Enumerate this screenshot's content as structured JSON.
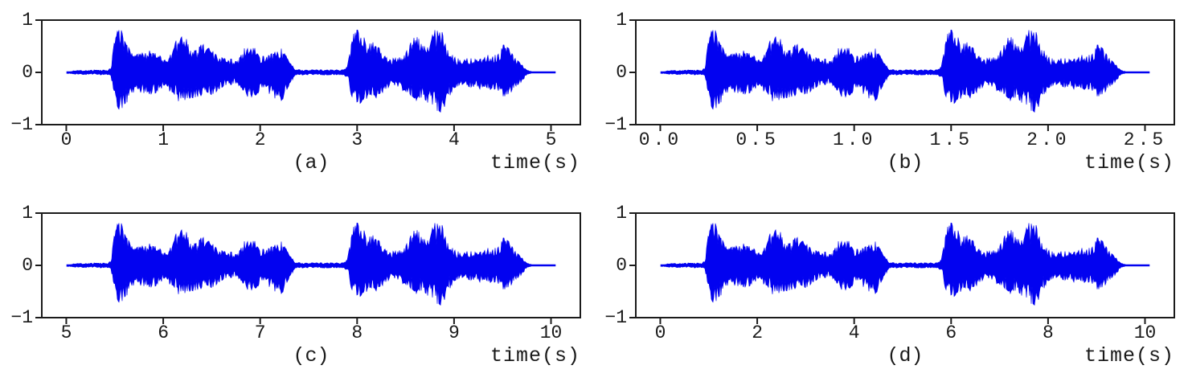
{
  "figure": {
    "background": "#ffffff",
    "frame_color": "#1b1b1b",
    "text_color": "#1a1a1a",
    "waveform_color": "#0202f0"
  },
  "waveform_envelope": {
    "description": "Shared speech waveform amplitude envelope; points are [time_s_on_plot_a, upper_amp, lower_amp]. Plots a-d show the same signal with different time offset/scale.",
    "duration_s": 5.05,
    "active_end_s": 4.75,
    "points": [
      [
        0.0,
        0.02,
        0.02
      ],
      [
        0.06,
        0.03,
        0.03
      ],
      [
        0.1,
        0.045,
        0.04
      ],
      [
        0.16,
        0.04,
        0.04
      ],
      [
        0.2,
        0.05,
        0.045
      ],
      [
        0.26,
        0.045,
        0.045
      ],
      [
        0.3,
        0.05,
        0.04
      ],
      [
        0.36,
        0.045,
        0.05
      ],
      [
        0.42,
        0.05,
        0.045
      ],
      [
        0.46,
        0.09,
        0.07
      ],
      [
        0.5,
        0.72,
        0.55
      ],
      [
        0.54,
        0.88,
        0.7
      ],
      [
        0.58,
        0.85,
        0.74
      ],
      [
        0.62,
        0.7,
        0.66
      ],
      [
        0.66,
        0.44,
        0.5
      ],
      [
        0.7,
        0.38,
        0.4
      ],
      [
        0.74,
        0.43,
        0.4
      ],
      [
        0.78,
        0.39,
        0.46
      ],
      [
        0.82,
        0.46,
        0.42
      ],
      [
        0.86,
        0.45,
        0.46
      ],
      [
        0.9,
        0.41,
        0.44
      ],
      [
        0.94,
        0.44,
        0.4
      ],
      [
        0.98,
        0.34,
        0.33
      ],
      [
        1.02,
        0.27,
        0.27
      ],
      [
        1.06,
        0.39,
        0.36
      ],
      [
        1.1,
        0.6,
        0.48
      ],
      [
        1.15,
        0.74,
        0.56
      ],
      [
        1.2,
        0.78,
        0.61
      ],
      [
        1.25,
        0.66,
        0.58
      ],
      [
        1.3,
        0.49,
        0.51
      ],
      [
        1.35,
        0.53,
        0.52
      ],
      [
        1.4,
        0.57,
        0.5
      ],
      [
        1.45,
        0.46,
        0.47
      ],
      [
        1.5,
        0.48,
        0.43
      ],
      [
        1.55,
        0.4,
        0.44
      ],
      [
        1.6,
        0.31,
        0.32
      ],
      [
        1.65,
        0.25,
        0.27
      ],
      [
        1.7,
        0.27,
        0.24
      ],
      [
        1.75,
        0.21,
        0.22
      ],
      [
        1.8,
        0.34,
        0.37
      ],
      [
        1.85,
        0.53,
        0.48
      ],
      [
        1.9,
        0.62,
        0.52
      ],
      [
        1.95,
        0.48,
        0.45
      ],
      [
        2.0,
        0.35,
        0.37
      ],
      [
        2.05,
        0.31,
        0.33
      ],
      [
        2.1,
        0.41,
        0.43
      ],
      [
        2.15,
        0.48,
        0.52
      ],
      [
        2.2,
        0.53,
        0.57
      ],
      [
        2.25,
        0.47,
        0.5
      ],
      [
        2.3,
        0.23,
        0.27
      ],
      [
        2.36,
        0.06,
        0.06
      ],
      [
        2.46,
        0.05,
        0.05
      ],
      [
        2.56,
        0.055,
        0.05
      ],
      [
        2.66,
        0.05,
        0.055
      ],
      [
        2.76,
        0.055,
        0.05
      ],
      [
        2.86,
        0.06,
        0.06
      ],
      [
        2.9,
        0.12,
        0.1
      ],
      [
        2.94,
        0.62,
        0.46
      ],
      [
        2.98,
        0.95,
        0.62
      ],
      [
        3.02,
        1.0,
        0.66
      ],
      [
        3.06,
        0.83,
        0.61
      ],
      [
        3.1,
        0.65,
        0.57
      ],
      [
        3.15,
        0.67,
        0.53
      ],
      [
        3.2,
        0.57,
        0.54
      ],
      [
        3.25,
        0.43,
        0.43
      ],
      [
        3.3,
        0.31,
        0.33
      ],
      [
        3.35,
        0.28,
        0.3
      ],
      [
        3.4,
        0.32,
        0.31
      ],
      [
        3.45,
        0.31,
        0.34
      ],
      [
        3.5,
        0.47,
        0.43
      ],
      [
        3.55,
        0.69,
        0.51
      ],
      [
        3.6,
        0.8,
        0.57
      ],
      [
        3.65,
        0.73,
        0.55
      ],
      [
        3.7,
        0.59,
        0.59
      ],
      [
        3.75,
        0.69,
        0.69
      ],
      [
        3.8,
        0.91,
        0.81
      ],
      [
        3.85,
        0.96,
        0.89
      ],
      [
        3.9,
        0.73,
        0.73
      ],
      [
        3.95,
        0.45,
        0.48
      ],
      [
        4.0,
        0.31,
        0.33
      ],
      [
        4.06,
        0.28,
        0.3
      ],
      [
        4.12,
        0.31,
        0.29
      ],
      [
        4.18,
        0.3,
        0.32
      ],
      [
        4.24,
        0.36,
        0.33
      ],
      [
        4.3,
        0.32,
        0.37
      ],
      [
        4.36,
        0.37,
        0.37
      ],
      [
        4.42,
        0.34,
        0.4
      ],
      [
        4.46,
        0.43,
        0.42
      ],
      [
        4.5,
        0.57,
        0.47
      ],
      [
        4.55,
        0.52,
        0.5
      ],
      [
        4.6,
        0.37,
        0.42
      ],
      [
        4.65,
        0.27,
        0.32
      ],
      [
        4.7,
        0.17,
        0.2
      ],
      [
        4.75,
        0.05,
        0.05
      ],
      [
        4.8,
        0.015,
        0.015
      ],
      [
        5.05,
        0.012,
        0.012
      ]
    ]
  },
  "chart_data": [
    {
      "type": "line",
      "title": "",
      "label": "(a)",
      "xlabel": "time(s)",
      "ylim": [
        -1,
        1
      ],
      "xlim": [
        -0.2525,
        5.3025
      ],
      "x_ticks": [
        0,
        1,
        2,
        3,
        4,
        5
      ],
      "x_tick_labels": [
        "0",
        "1",
        "2",
        "3",
        "4",
        "5"
      ],
      "y_ticks": [
        1,
        0,
        -1
      ],
      "y_tick_labels": [
        "1",
        "0",
        "−1"
      ],
      "grid": false,
      "legend": "none",
      "signal": {
        "offset": 0,
        "scale": 1
      }
    },
    {
      "type": "line",
      "title": "",
      "label": "(b)",
      "xlabel": "time(s)",
      "ylim": [
        -1,
        1
      ],
      "xlim": [
        -0.1263,
        2.6513
      ],
      "x_ticks": [
        0.0,
        0.5,
        1.0,
        1.5,
        2.0,
        2.5
      ],
      "x_tick_labels": [
        "0.0",
        "0.5",
        "1.0",
        "1.5",
        "2.0",
        "2.5"
      ],
      "y_ticks": [
        1,
        0,
        -1
      ],
      "y_tick_labels": [
        "1",
        "0",
        "−1"
      ],
      "grid": false,
      "legend": "none",
      "signal": {
        "offset": 0,
        "scale": 0.5
      }
    },
    {
      "type": "line",
      "title": "",
      "label": "(c)",
      "xlabel": "time(s)",
      "ylim": [
        -1,
        1
      ],
      "xlim": [
        4.7475,
        10.3025
      ],
      "x_ticks": [
        5,
        6,
        7,
        8,
        9,
        10
      ],
      "x_tick_labels": [
        "5",
        "6",
        "7",
        "8",
        "9",
        "10"
      ],
      "y_ticks": [
        1,
        0,
        -1
      ],
      "y_tick_labels": [
        "1",
        "0",
        "−1"
      ],
      "grid": false,
      "legend": "none",
      "signal": {
        "offset": 5,
        "scale": 1
      }
    },
    {
      "type": "line",
      "title": "",
      "label": "(d)",
      "xlabel": "time(s)",
      "ylim": [
        -1,
        1
      ],
      "xlim": [
        -0.505,
        10.605
      ],
      "x_ticks": [
        0,
        2,
        4,
        6,
        8,
        10
      ],
      "x_tick_labels": [
        "0",
        "2",
        "4",
        "6",
        "8",
        "10"
      ],
      "y_ticks": [
        1,
        0,
        -1
      ],
      "y_tick_labels": [
        "1",
        "0",
        "−1"
      ],
      "grid": false,
      "legend": "none",
      "signal": {
        "offset": 0,
        "scale": 2
      }
    }
  ]
}
